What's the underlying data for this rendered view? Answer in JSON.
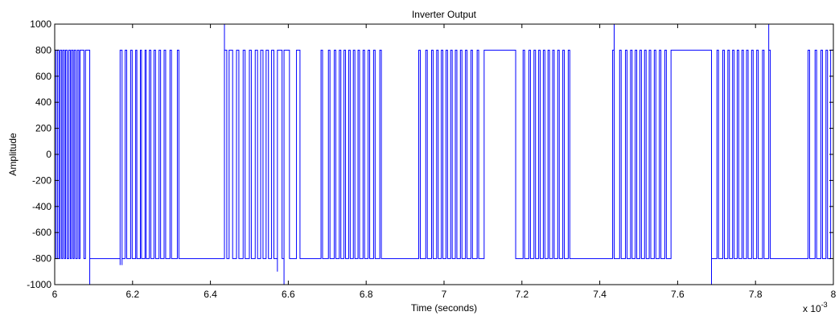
{
  "chart_data": {
    "type": "line",
    "title": "Inverter Output",
    "xlabel": "Time (seconds)",
    "ylabel": "Amplitude",
    "x_multiplier_label": {
      "base": "x 10",
      "exponent": "-3"
    },
    "xlim": [
      6,
      8
    ],
    "ylim": [
      -1000,
      1000
    ],
    "x_ticks": [
      6,
      6.2,
      6.4,
      6.6,
      6.8,
      7,
      7.2,
      7.4,
      7.6,
      7.8,
      8
    ],
    "x_tick_labels": [
      "6",
      "6.2",
      "6.4",
      "6.6",
      "6.8",
      "7",
      "7.2",
      "7.4",
      "7.6",
      "7.8",
      "8"
    ],
    "y_ticks": [
      1000,
      800,
      600,
      400,
      200,
      0,
      -200,
      -400,
      -600,
      -800,
      -1000
    ],
    "y_tick_labels": [
      "1000",
      "800",
      "600",
      "400",
      "200",
      "0",
      "-200",
      "-400",
      "-600",
      "-800",
      "-1000"
    ],
    "grid": false,
    "series": [
      {
        "color": "#0000ff",
        "levels": {
          "high": 800,
          "low": -800
        },
        "high_spans": [
          [
            6.0,
            6.003
          ],
          [
            6.007,
            6.011
          ],
          [
            6.014,
            6.018
          ],
          [
            6.021,
            6.025
          ],
          [
            6.028,
            6.032
          ],
          [
            6.036,
            6.04
          ],
          [
            6.043,
            6.047
          ],
          [
            6.05,
            6.054
          ],
          [
            6.058,
            6.062
          ],
          [
            6.065,
            6.075
          ],
          [
            6.079,
            6.09
          ],
          [
            6.168,
            6.173
          ],
          [
            6.181,
            6.185
          ],
          [
            6.195,
            6.199
          ],
          [
            6.208,
            6.211
          ],
          [
            6.22,
            6.223
          ],
          [
            6.232,
            6.235
          ],
          [
            6.243,
            6.247
          ],
          [
            6.255,
            6.259
          ],
          [
            6.268,
            6.272
          ],
          [
            6.281,
            6.285
          ],
          [
            6.296,
            6.3
          ],
          [
            6.315,
            6.319
          ],
          [
            6.436,
            6.442
          ],
          [
            6.448,
            6.457
          ],
          [
            6.467,
            6.473
          ],
          [
            6.484,
            6.489
          ],
          [
            6.5,
            6.505
          ],
          [
            6.515,
            6.521
          ],
          [
            6.529,
            6.535
          ],
          [
            6.543,
            6.549
          ],
          [
            6.557,
            6.563
          ],
          [
            6.572,
            6.584
          ],
          [
            6.589,
            6.603
          ],
          [
            6.621,
            6.63
          ],
          [
            6.684,
            6.688
          ],
          [
            6.703,
            6.707
          ],
          [
            6.718,
            6.722
          ],
          [
            6.731,
            6.735
          ],
          [
            6.743,
            6.747
          ],
          [
            6.755,
            6.759
          ],
          [
            6.767,
            6.771
          ],
          [
            6.779,
            6.783
          ],
          [
            6.792,
            6.796
          ],
          [
            6.805,
            6.809
          ],
          [
            6.819,
            6.823
          ],
          [
            6.835,
            6.839
          ],
          [
            6.935,
            6.939
          ],
          [
            6.953,
            6.957
          ],
          [
            6.968,
            6.972
          ],
          [
            6.981,
            6.985
          ],
          [
            6.993,
            6.997
          ],
          [
            7.005,
            7.009
          ],
          [
            7.017,
            7.021
          ],
          [
            7.029,
            7.033
          ],
          [
            7.042,
            7.046
          ],
          [
            7.055,
            7.059
          ],
          [
            7.069,
            7.073
          ],
          [
            7.085,
            7.089
          ],
          [
            7.103,
            7.184
          ],
          [
            7.203,
            7.207
          ],
          [
            7.218,
            7.222
          ],
          [
            7.231,
            7.235
          ],
          [
            7.243,
            7.247
          ],
          [
            7.255,
            7.259
          ],
          [
            7.267,
            7.271
          ],
          [
            7.279,
            7.283
          ],
          [
            7.292,
            7.296
          ],
          [
            7.305,
            7.309
          ],
          [
            7.319,
            7.323
          ],
          [
            7.433,
            7.437
          ],
          [
            7.451,
            7.455
          ],
          [
            7.466,
            7.47
          ],
          [
            7.479,
            7.483
          ],
          [
            7.491,
            7.495
          ],
          [
            7.503,
            7.507
          ],
          [
            7.515,
            7.519
          ],
          [
            7.527,
            7.531
          ],
          [
            7.54,
            7.544
          ],
          [
            7.553,
            7.557
          ],
          [
            7.567,
            7.571
          ],
          [
            7.583,
            7.687
          ],
          [
            7.701,
            7.705
          ],
          [
            7.716,
            7.72
          ],
          [
            7.729,
            7.733
          ],
          [
            7.741,
            7.745
          ],
          [
            7.753,
            7.757
          ],
          [
            7.765,
            7.769
          ],
          [
            7.777,
            7.781
          ],
          [
            7.79,
            7.794
          ],
          [
            7.803,
            7.807
          ],
          [
            7.818,
            7.822
          ],
          [
            7.834,
            7.838
          ],
          [
            7.935,
            7.939
          ],
          [
            7.953,
            7.957
          ],
          [
            7.968,
            7.972
          ],
          [
            7.981,
            7.985
          ],
          [
            7.993,
            8.0
          ]
        ],
        "spikes": [
          {
            "x": 6.09,
            "y": -1000
          },
          {
            "x": 6.168,
            "y": -850
          },
          {
            "x": 6.173,
            "y": -850
          },
          {
            "x": 6.436,
            "y": 1000
          },
          {
            "x": 6.572,
            "y": -900
          },
          {
            "x": 6.589,
            "y": -1000
          },
          {
            "x": 7.437,
            "y": 1000
          },
          {
            "x": 7.687,
            "y": -1000
          },
          {
            "x": 7.834,
            "y": 1000
          }
        ]
      }
    ]
  }
}
